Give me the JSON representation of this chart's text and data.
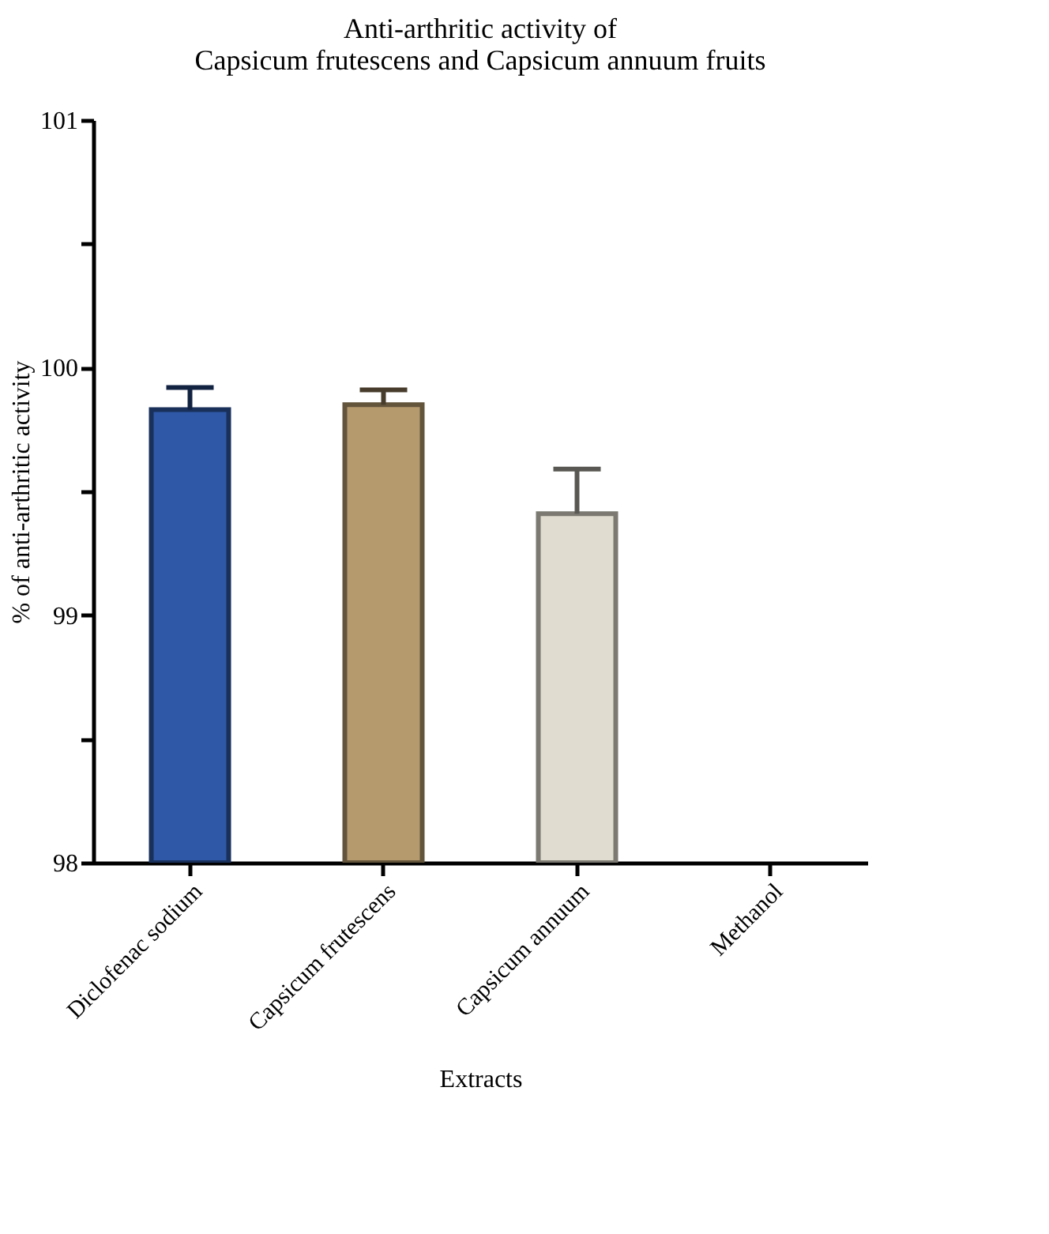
{
  "chart_data": {
    "type": "bar",
    "title": "Anti-arthritic activity of\nCapsicum frutescens and Capsicum annuum fruits",
    "xlabel": "Extracts",
    "ylabel": "% of anti-arthritic activity",
    "categories": [
      "Diclofenac sodium",
      "Capsicum frutescens",
      "Capsicum annuum",
      "Methanol"
    ],
    "values": [
      99.83,
      99.85,
      99.41,
      null
    ],
    "colors": [
      "#2f58a6",
      "#b59a6e",
      "#e0dccf",
      "#999999"
    ],
    "errors": [
      [
        99.83,
        99.92
      ],
      [
        99.85,
        99.91
      ],
      [
        99.41,
        99.59
      ],
      null
    ],
    "ylim": [
      98,
      101
    ],
    "yticks": [
      98,
      {
        "value": 98.5,
        "label": null
      },
      99,
      {
        "value": 99.5,
        "label": null
      },
      100,
      {
        "value": 100.5,
        "label": null
      },
      101
    ],
    "grid": false
  }
}
